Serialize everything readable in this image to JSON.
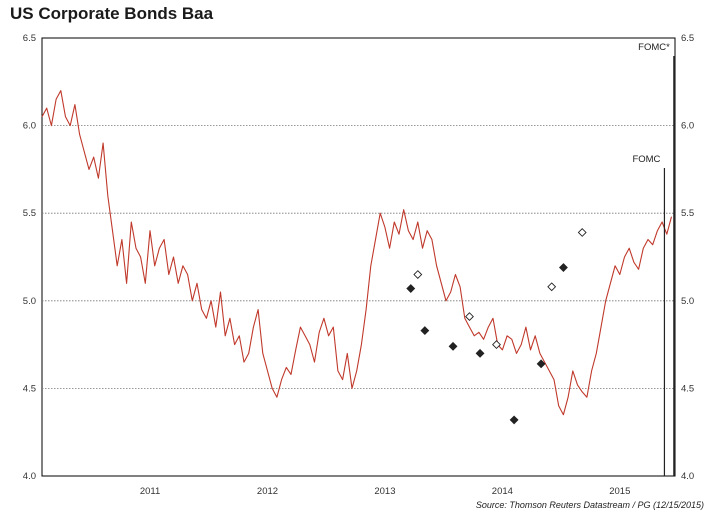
{
  "chart_data": {
    "type": "line",
    "title": "US Corporate Bonds Baa",
    "xlabel": "",
    "ylabel": "",
    "ylim": [
      4.0,
      6.5
    ],
    "xlim": [
      2010.58,
      2015.97
    ],
    "y_ticks": [
      4.0,
      4.5,
      5.0,
      5.5,
      6.0,
      6.5
    ],
    "y_tick_labels": [
      "4.0",
      "4.5",
      "5.0",
      "5.5",
      "6.0",
      "6.5"
    ],
    "x_ticks": [
      {
        "value": 2011.5,
        "label": "2011"
      },
      {
        "value": 2012.5,
        "label": "2012"
      },
      {
        "value": 2013.5,
        "label": "2013"
      },
      {
        "value": 2014.5,
        "label": "2014"
      },
      {
        "value": 2015.5,
        "label": "2015"
      }
    ],
    "grid": "horizontal-dotted",
    "series": [
      {
        "name": "US Corporate Bonds Baa",
        "color": "#c0392b",
        "x": [
          2010.58,
          2010.62,
          2010.66,
          2010.7,
          2010.74,
          2010.78,
          2010.82,
          2010.86,
          2010.9,
          2010.94,
          2010.98,
          2011.02,
          2011.06,
          2011.1,
          2011.14,
          2011.18,
          2011.22,
          2011.26,
          2011.3,
          2011.34,
          2011.38,
          2011.42,
          2011.46,
          2011.5,
          2011.54,
          2011.58,
          2011.62,
          2011.66,
          2011.7,
          2011.74,
          2011.78,
          2011.82,
          2011.86,
          2011.9,
          2011.94,
          2011.98,
          2012.02,
          2012.06,
          2012.1,
          2012.14,
          2012.18,
          2012.22,
          2012.26,
          2012.3,
          2012.34,
          2012.38,
          2012.42,
          2012.46,
          2012.5,
          2012.54,
          2012.58,
          2012.62,
          2012.66,
          2012.7,
          2012.74,
          2012.78,
          2012.82,
          2012.86,
          2012.9,
          2012.94,
          2012.98,
          2013.02,
          2013.06,
          2013.1,
          2013.14,
          2013.18,
          2013.22,
          2013.26,
          2013.3,
          2013.34,
          2013.38,
          2013.42,
          2013.46,
          2013.5,
          2013.54,
          2013.58,
          2013.62,
          2013.66,
          2013.7,
          2013.74,
          2013.78,
          2013.82,
          2013.86,
          2013.9,
          2013.94,
          2013.98,
          2014.02,
          2014.06,
          2014.1,
          2014.14,
          2014.18,
          2014.22,
          2014.26,
          2014.3,
          2014.34,
          2014.38,
          2014.42,
          2014.46,
          2014.5,
          2014.54,
          2014.58,
          2014.62,
          2014.66,
          2014.7,
          2014.74,
          2014.78,
          2014.82,
          2014.86,
          2014.9,
          2014.94,
          2014.98,
          2015.02,
          2015.06,
          2015.1,
          2015.14,
          2015.18,
          2015.22,
          2015.26,
          2015.3,
          2015.34,
          2015.38,
          2015.42,
          2015.46,
          2015.5,
          2015.54,
          2015.58,
          2015.62,
          2015.66,
          2015.7,
          2015.74,
          2015.78,
          2015.82,
          2015.86,
          2015.9,
          2015.94
        ],
        "values": [
          6.05,
          6.1,
          6.0,
          6.15,
          6.2,
          6.05,
          6.0,
          6.12,
          5.95,
          5.85,
          5.75,
          5.82,
          5.7,
          5.9,
          5.6,
          5.4,
          5.2,
          5.35,
          5.1,
          5.45,
          5.3,
          5.25,
          5.1,
          5.4,
          5.2,
          5.3,
          5.35,
          5.15,
          5.25,
          5.1,
          5.2,
          5.15,
          5.0,
          5.1,
          4.95,
          4.9,
          5.0,
          4.85,
          5.05,
          4.8,
          4.9,
          4.75,
          4.8,
          4.65,
          4.7,
          4.85,
          4.95,
          4.7,
          4.6,
          4.5,
          4.45,
          4.55,
          4.62,
          4.58,
          4.72,
          4.85,
          4.8,
          4.75,
          4.65,
          4.82,
          4.9,
          4.8,
          4.85,
          4.6,
          4.55,
          4.7,
          4.5,
          4.6,
          4.75,
          4.95,
          5.2,
          5.35,
          5.5,
          5.42,
          5.3,
          5.45,
          5.38,
          5.52,
          5.4,
          5.35,
          5.45,
          5.3,
          5.4,
          5.35,
          5.2,
          5.1,
          5.0,
          5.05,
          5.15,
          5.08,
          4.9,
          4.85,
          4.8,
          4.82,
          4.78,
          4.85,
          4.9,
          4.75,
          4.72,
          4.8,
          4.78,
          4.7,
          4.75,
          4.85,
          4.72,
          4.8,
          4.7,
          4.65,
          4.6,
          4.55,
          4.4,
          4.35,
          4.45,
          4.6,
          4.52,
          4.48,
          4.45,
          4.6,
          4.7,
          4.85,
          5.0,
          5.1,
          5.2,
          5.15,
          5.25,
          5.3,
          5.22,
          5.18,
          5.3,
          5.35,
          5.32,
          5.4,
          5.45,
          5.38,
          5.48
        ]
      },
      {
        "name": "Events (filled diamond)",
        "color": "#222222",
        "x": [
          2013.72,
          2013.84,
          2014.08,
          2014.31,
          2014.6,
          2014.83,
          2015.02
        ],
        "values": [
          5.07,
          4.83,
          4.74,
          4.7,
          4.32,
          4.64,
          5.19
        ]
      },
      {
        "name": "Events (open diamond)",
        "color": "#222222",
        "x": [
          2013.78,
          2014.22,
          2014.45,
          2014.92,
          2015.18
        ],
        "values": [
          5.15,
          4.91,
          4.75,
          5.08,
          5.39
        ]
      }
    ],
    "annotations": [
      {
        "label": "FOMC*",
        "x": 2015.96
      },
      {
        "label": "FOMC",
        "x": 2015.88
      }
    ],
    "source": "Source: Thomson Reuters Datastream / PG (12/15/2015)"
  }
}
